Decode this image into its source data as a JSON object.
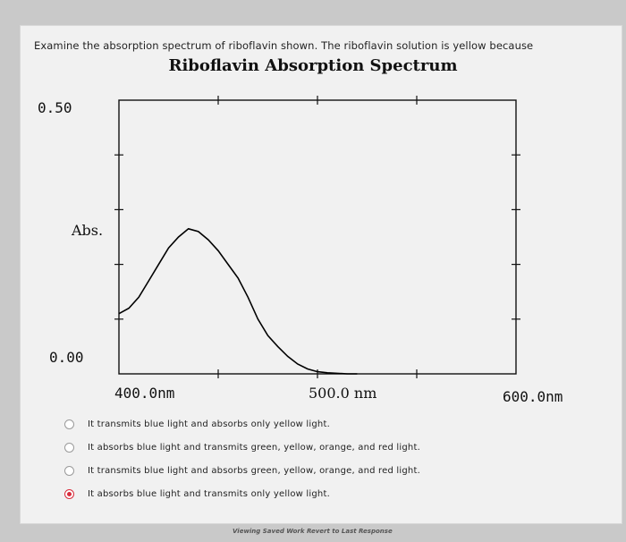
{
  "question": {
    "text": "Examine the absorption spectrum of riboflavin shown. The riboflavin solution is yellow because"
  },
  "chart_data": {
    "type": "line",
    "title": "Riboflavin Absorption Spectrum",
    "ylabel": "Abs.",
    "xlabel": "",
    "xlim": [
      400,
      600
    ],
    "ylim": [
      0,
      0.5
    ],
    "y_ticks": [
      "0.50",
      "0.00"
    ],
    "x_ticks": [
      "400.0nm",
      "500.0 nm",
      "600.0nm"
    ],
    "series": [
      {
        "x": [
          400,
          405,
          410,
          415,
          420,
          425,
          430,
          435,
          440,
          445,
          450,
          455,
          460,
          465,
          470,
          475,
          480,
          485,
          490,
          495,
          500,
          505,
          510,
          515,
          520
        ],
        "y": [
          0.11,
          0.12,
          0.14,
          0.17,
          0.2,
          0.23,
          0.25,
          0.265,
          0.26,
          0.245,
          0.225,
          0.2,
          0.175,
          0.14,
          0.1,
          0.07,
          0.05,
          0.032,
          0.018,
          0.009,
          0.004,
          0.002,
          0.001,
          0.0,
          0.0
        ]
      }
    ],
    "grid": false,
    "line_color": "#000000"
  },
  "options": [
    {
      "label": "It transmits blue light and absorbs only yellow light.",
      "selected": false
    },
    {
      "label": "It absorbs blue light and transmits green, yellow, orange, and red light.",
      "selected": false
    },
    {
      "label": "It transmits blue light and absorbs green, yellow, orange, and red light.",
      "selected": false
    },
    {
      "label": "It absorbs blue light and transmits only yellow light.",
      "selected": true
    }
  ],
  "footer": {
    "text": "Viewing Saved Work Revert to Last Response"
  },
  "colors": {
    "selected_radio": "#d82c3c",
    "page_background": "#c9c9c9"
  }
}
